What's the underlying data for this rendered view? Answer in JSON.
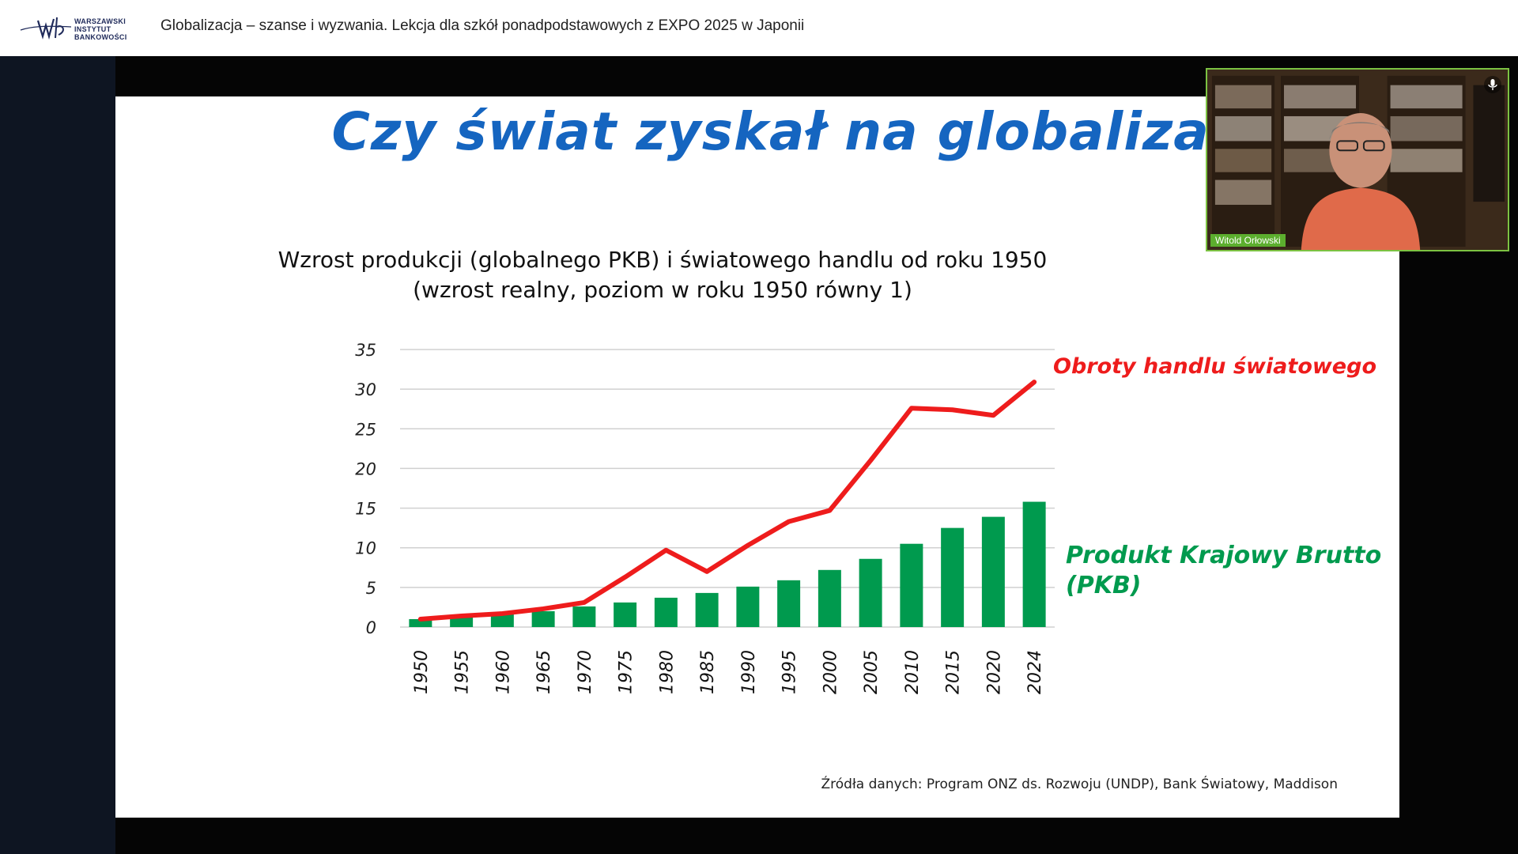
{
  "header": {
    "logo_lines": [
      "WARSZAWSKI",
      "INSTYTUT",
      "BANKOWOŚCI"
    ],
    "lesson_title": "Globalizacja – szanse i wyzwania. Lekcja dla szkół ponadpodstawowych z EXPO 2025 w Japonii"
  },
  "slide": {
    "title": "Czy świat zyskał na globalizacji?",
    "chart_title_line1": "Wzrost produkcji (globalnego PKB) i światowego handlu od roku 1950",
    "chart_title_line2": "(wzrost realny, poziom w roku 1950 równy 1)",
    "source": "Źródła danych: Program ONZ ds. Rozwoju (UNDP), Bank Światowy, Maddison"
  },
  "chart_data": {
    "type": "bar",
    "categories": [
      "1950",
      "1955",
      "1960",
      "1965",
      "1970",
      "1975",
      "1980",
      "1985",
      "1990",
      "1995",
      "2000",
      "2005",
      "2010",
      "2015",
      "2020",
      "2024"
    ],
    "y_ticks": [
      "0",
      "5",
      "10",
      "15",
      "20",
      "25",
      "30",
      "35"
    ],
    "ylim": [
      0,
      35
    ],
    "grid": true,
    "series": [
      {
        "name": "Produkt Krajowy Brutto (PKB)",
        "label_lines": [
          "Produkt Krajowy Brutto",
          "(PKB)"
        ],
        "kind": "bar",
        "color": "#009a4e",
        "values": [
          1.0,
          1.2,
          1.6,
          2.0,
          2.6,
          3.1,
          3.7,
          4.3,
          5.1,
          5.9,
          7.2,
          8.6,
          10.5,
          12.5,
          13.9,
          15.8
        ]
      },
      {
        "name": "Obroty handlu światowego",
        "label_lines": [
          "Obroty handlu światowego"
        ],
        "kind": "line",
        "color": "#ee1c1c",
        "values": [
          1.0,
          1.4,
          1.7,
          2.3,
          3.1,
          6.3,
          9.7,
          7.0,
          10.3,
          13.3,
          14.7,
          21.0,
          27.6,
          27.4,
          26.7,
          30.9
        ]
      }
    ]
  },
  "webcam": {
    "name": "Witold Orłowski"
  }
}
